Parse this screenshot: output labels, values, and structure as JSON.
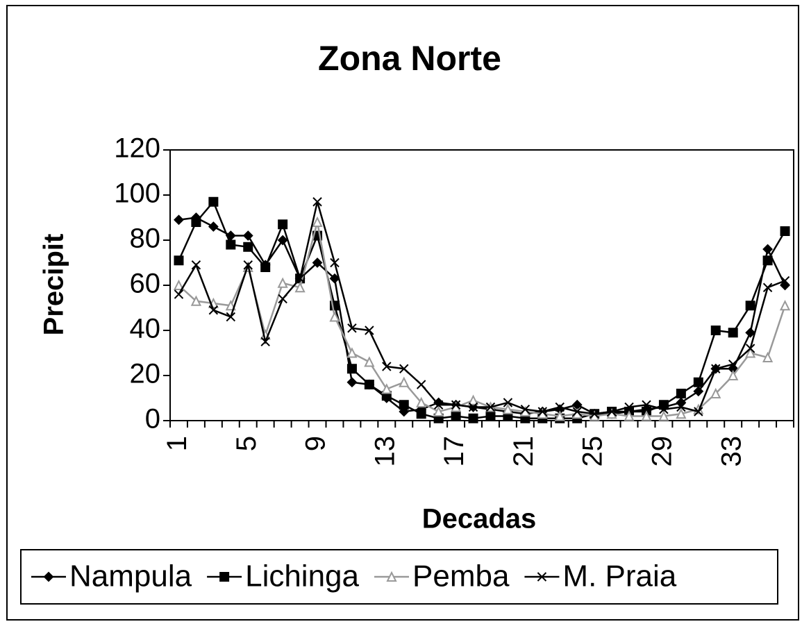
{
  "chart_data": {
    "type": "line",
    "title": "Zona Norte",
    "x_label": "Decadas",
    "y_label": "Precipit",
    "categories": [
      1,
      null,
      null,
      null,
      5,
      null,
      null,
      null,
      9,
      null,
      null,
      null,
      13,
      null,
      null,
      null,
      17,
      null,
      null,
      null,
      21,
      null,
      null,
      null,
      25,
      null,
      null,
      null,
      29,
      null,
      null,
      null,
      33,
      null,
      null,
      null
    ],
    "series": [
      {
        "name": "Nampula",
        "color": "#000000",
        "marker": "diamond",
        "values": [
          89,
          90,
          86,
          82,
          82,
          69,
          80,
          63,
          70,
          63,
          17,
          16,
          10,
          4,
          5,
          8,
          7,
          6,
          5,
          4,
          3,
          4,
          5,
          7,
          3,
          3,
          4,
          5,
          6,
          8,
          13,
          23,
          23,
          39,
          76,
          60
        ]
      },
      {
        "name": "Lichinga",
        "color": "#000000",
        "marker": "square",
        "values": [
          71,
          88,
          97,
          78,
          77,
          68,
          87,
          63,
          82,
          51,
          23,
          16,
          11,
          7,
          3,
          1,
          2,
          1,
          2,
          2,
          1,
          1,
          1,
          1,
          3,
          4,
          4,
          4,
          7,
          12,
          17,
          40,
          39,
          51,
          71,
          84
        ]
      },
      {
        "name": "Pemba",
        "color": "#999999",
        "marker": "triangle",
        "values": [
          60,
          53,
          52,
          51,
          68,
          38,
          61,
          59,
          88,
          46,
          30,
          26,
          14,
          17,
          8,
          4,
          6,
          9,
          6,
          5,
          4,
          3,
          2,
          3,
          2,
          3,
          2,
          2,
          2,
          3,
          5,
          12,
          20,
          30,
          28,
          51
        ]
      },
      {
        "name": "M. Praia",
        "color": "#000000",
        "marker": "x",
        "values": [
          56,
          69,
          49,
          46,
          69,
          35,
          54,
          63,
          97,
          70,
          41,
          40,
          24,
          23,
          16,
          7,
          7,
          6,
          6,
          8,
          5,
          4,
          6,
          4,
          3,
          4,
          6,
          7,
          5,
          6,
          4,
          23,
          25,
          32,
          59,
          62
        ]
      }
    ],
    "ylim": [
      0,
      120
    ],
    "yticks": [
      0,
      20,
      40,
      60,
      80,
      100,
      120
    ],
    "grid": false,
    "legend": "bottom"
  }
}
